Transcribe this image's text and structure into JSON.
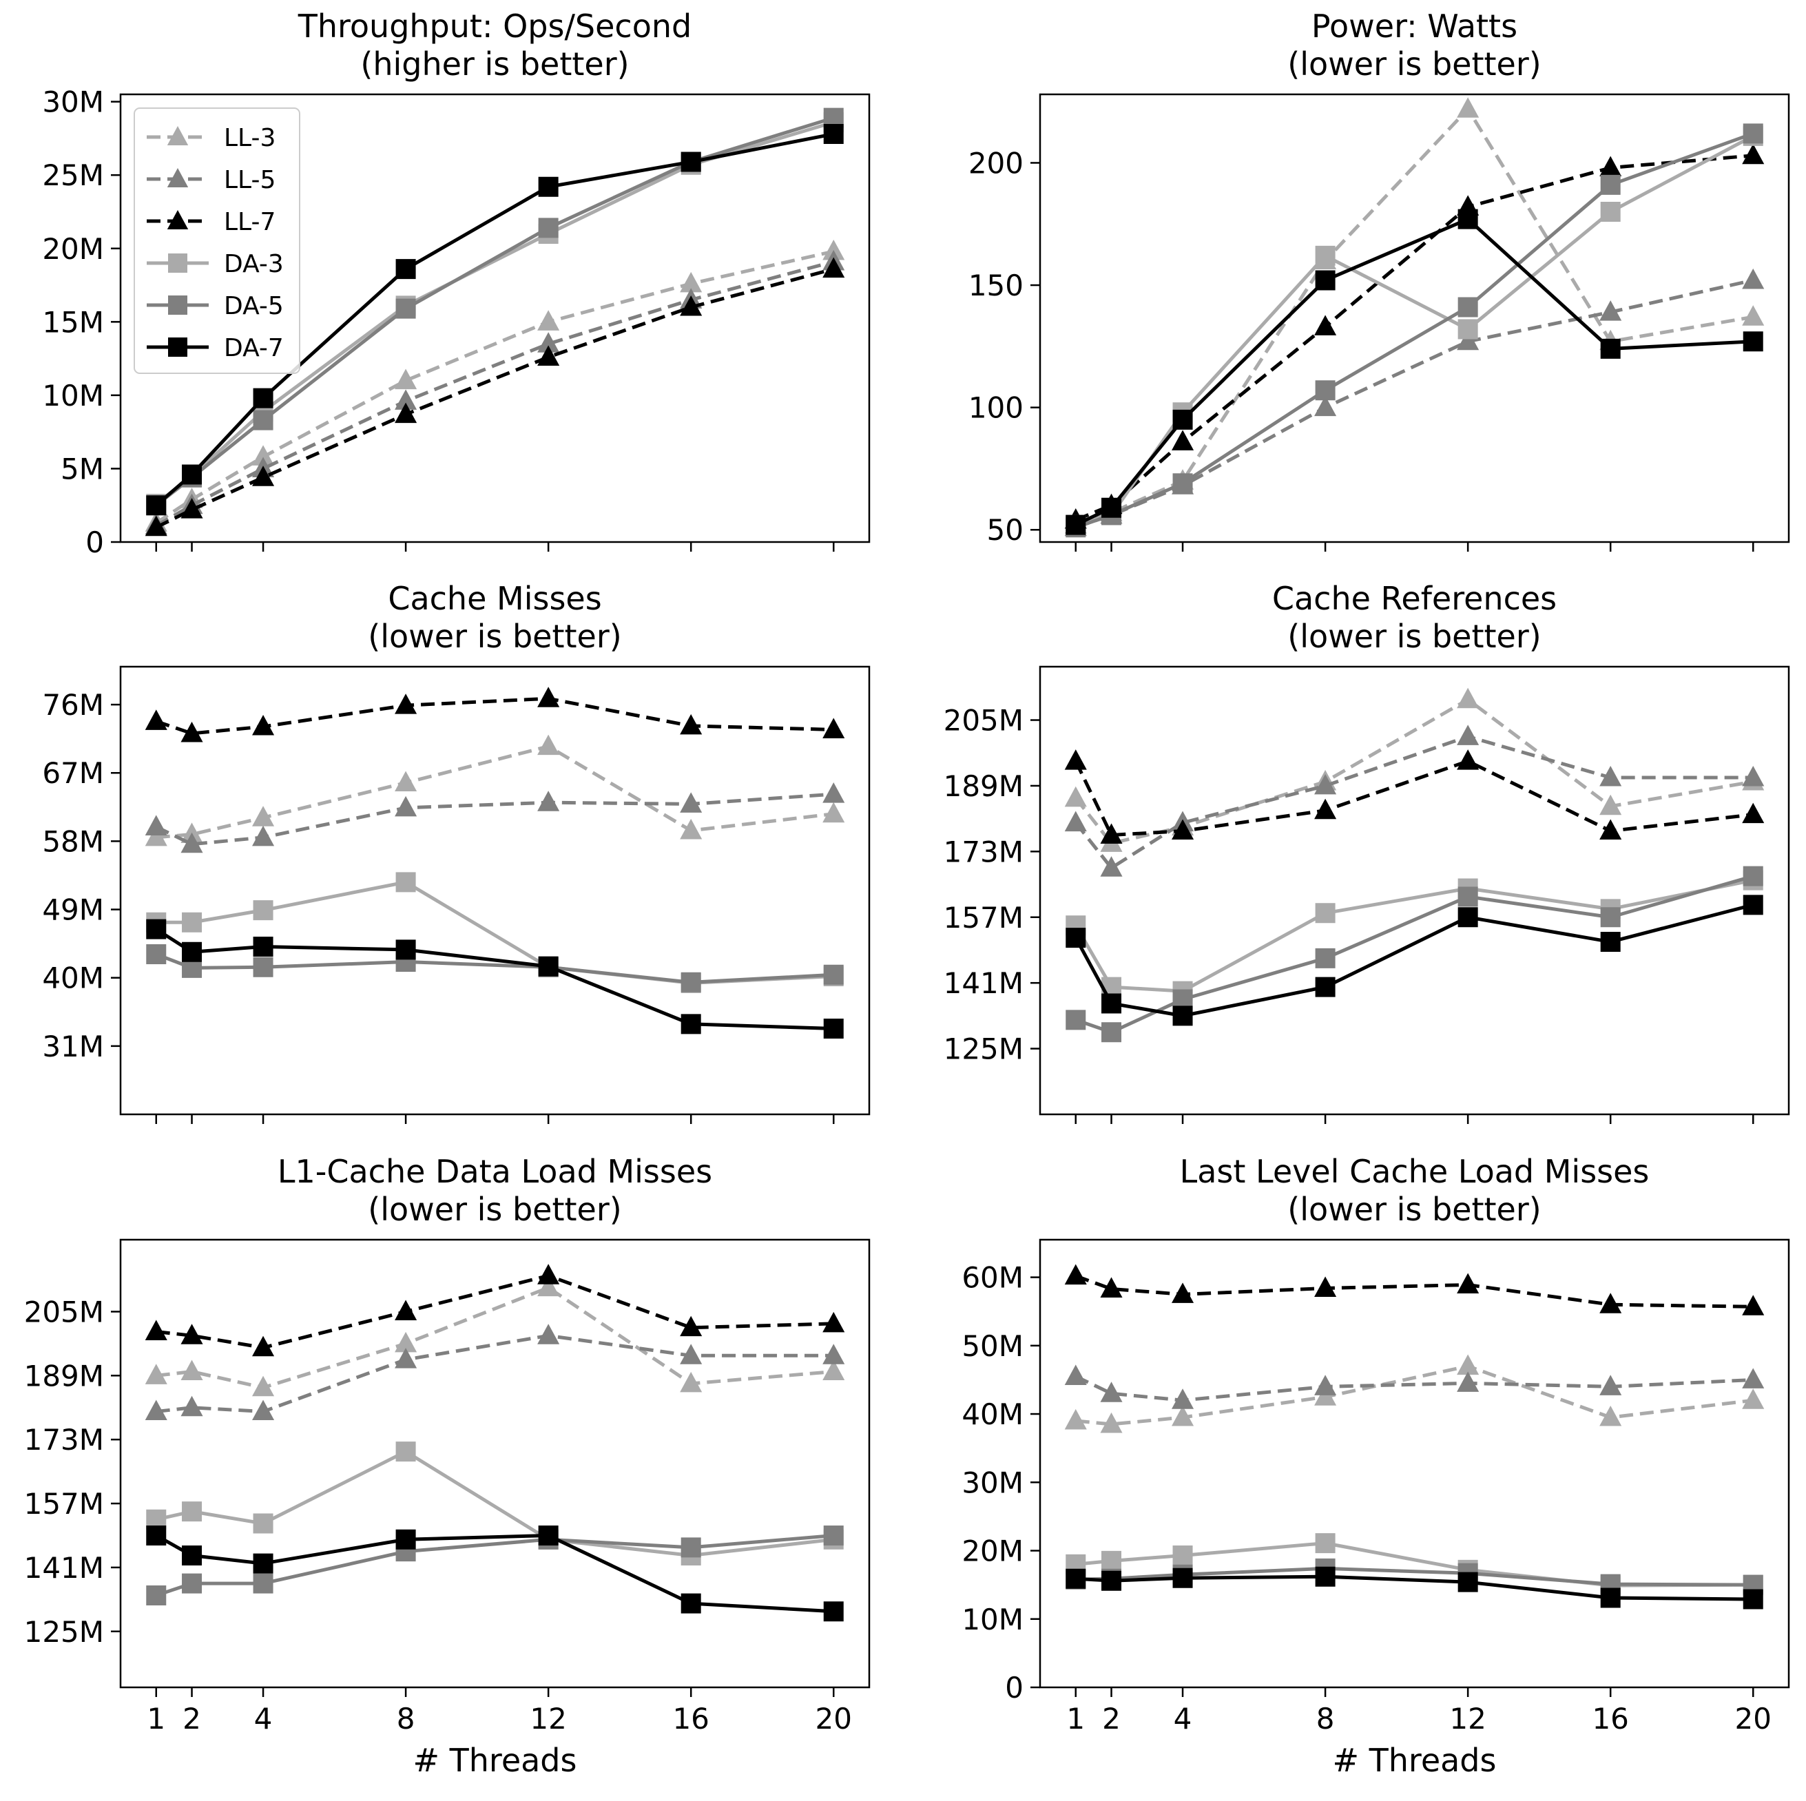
{
  "style": {
    "series": {
      "LL-3": {
        "color": "#aaaaaa",
        "dash": true,
        "marker": "triangle"
      },
      "LL-5": {
        "color": "#7f7f7f",
        "dash": true,
        "marker": "triangle"
      },
      "LL-7": {
        "color": "#000000",
        "dash": true,
        "marker": "triangle"
      },
      "DA-3": {
        "color": "#aaaaaa",
        "dash": false,
        "marker": "square"
      },
      "DA-5": {
        "color": "#7f7f7f",
        "dash": false,
        "marker": "square"
      },
      "DA-7": {
        "color": "#000000",
        "dash": false,
        "marker": "square"
      }
    }
  },
  "legend": {
    "location": "top-left",
    "entries": [
      "LL-3",
      "LL-5",
      "LL-7",
      "DA-3",
      "DA-5",
      "DA-7"
    ]
  },
  "chart_data": [
    {
      "type": "line",
      "title": [
        "Throughput: Ops/Second",
        "(higher is better)"
      ],
      "xlabel": "",
      "ylabel": "",
      "x": [
        1,
        2,
        4,
        8,
        12,
        16,
        20
      ],
      "xlim": [
        0,
        21
      ],
      "ylim": [
        0,
        30.5
      ],
      "yticks": [
        0,
        5,
        10,
        15,
        20,
        25,
        30
      ],
      "ytick_labels": [
        "0",
        "5M",
        "10M",
        "15M",
        "20M",
        "25M",
        "30M"
      ],
      "show_x_tick_labels": false,
      "series": [
        {
          "name": "LL-3",
          "values": [
            1.3,
            2.9,
            5.8,
            11.0,
            15.0,
            17.6,
            19.8
          ]
        },
        {
          "name": "LL-5",
          "values": [
            1.1,
            2.5,
            5.0,
            9.6,
            13.5,
            16.5,
            19.1
          ]
        },
        {
          "name": "LL-7",
          "values": [
            1.0,
            2.2,
            4.4,
            8.7,
            12.6,
            16.0,
            18.6
          ]
        },
        {
          "name": "DA-3",
          "values": [
            2.6,
            4.5,
            8.9,
            16.1,
            21.0,
            25.7,
            28.6
          ]
        },
        {
          "name": "DA-5",
          "values": [
            2.5,
            4.4,
            8.3,
            15.9,
            21.4,
            25.9,
            28.9
          ]
        },
        {
          "name": "DA-7",
          "values": [
            2.5,
            4.6,
            9.8,
            18.6,
            24.2,
            25.9,
            27.8
          ]
        }
      ]
    },
    {
      "type": "line",
      "title": [
        "Power: Watts",
        "(lower is better)"
      ],
      "xlabel": "",
      "ylabel": "",
      "x": [
        1,
        2,
        4,
        8,
        12,
        16,
        20
      ],
      "xlim": [
        0,
        21
      ],
      "ylim": [
        45,
        228
      ],
      "yticks": [
        50,
        100,
        150,
        200
      ],
      "ytick_labels": [
        "50",
        "100",
        "150",
        "200"
      ],
      "show_x_tick_labels": false,
      "series": [
        {
          "name": "LL-3",
          "values": [
            52,
            57,
            70,
            160,
            222,
            127,
            137
          ]
        },
        {
          "name": "LL-5",
          "values": [
            51,
            56,
            68,
            100,
            127,
            139,
            152
          ]
        },
        {
          "name": "LL-7",
          "values": [
            54,
            60,
            86,
            133,
            182,
            198,
            203
          ]
        },
        {
          "name": "DA-3",
          "values": [
            52,
            56,
            98,
            162,
            132,
            180,
            211
          ]
        },
        {
          "name": "DA-5",
          "values": [
            51,
            56,
            69,
            107,
            141,
            191,
            212
          ]
        },
        {
          "name": "DA-7",
          "values": [
            52,
            59,
            95,
            152,
            177,
            124,
            127
          ]
        }
      ]
    },
    {
      "type": "line",
      "title": [
        "Cache Misses",
        "(lower is better)"
      ],
      "xlabel": "",
      "ylabel": "",
      "x": [
        1,
        2,
        4,
        8,
        12,
        16,
        20
      ],
      "xlim": [
        0,
        21
      ],
      "ylim": [
        22,
        81
      ],
      "yticks": [
        31,
        40,
        49,
        58,
        67,
        76
      ],
      "ytick_labels": [
        "31M",
        "40M",
        "49M",
        "58M",
        "67M",
        "76M"
      ],
      "show_x_tick_labels": false,
      "series": [
        {
          "name": "LL-3",
          "values": [
            58.5,
            58.9,
            61.1,
            65.7,
            70.5,
            59.4,
            61.6
          ]
        },
        {
          "name": "LL-5",
          "values": [
            59.9,
            57.6,
            58.5,
            62.4,
            63.1,
            62.9,
            64.2
          ]
        },
        {
          "name": "LL-7",
          "values": [
            73.8,
            72.2,
            73.1,
            75.9,
            76.8,
            73.2,
            72.7
          ]
        },
        {
          "name": "DA-3",
          "values": [
            47.3,
            47.3,
            48.9,
            52.6,
            41.4,
            39.3,
            40.2
          ]
        },
        {
          "name": "DA-5",
          "values": [
            43.1,
            41.3,
            41.4,
            42.1,
            41.4,
            39.4,
            40.4
          ]
        },
        {
          "name": "DA-7",
          "values": [
            46.4,
            43.4,
            44.1,
            43.7,
            41.5,
            33.9,
            33.3
          ]
        }
      ]
    },
    {
      "type": "line",
      "title": [
        "Cache References",
        "(lower is better)"
      ],
      "xlabel": "",
      "ylabel": "",
      "x": [
        1,
        2,
        4,
        8,
        12,
        16,
        20
      ],
      "xlim": [
        0,
        21
      ],
      "ylim": [
        109,
        218
      ],
      "yticks": [
        125,
        141,
        157,
        173,
        189,
        205
      ],
      "ytick_labels": [
        "125M",
        "141M",
        "157M",
        "173M",
        "189M",
        "205M"
      ],
      "show_x_tick_labels": false,
      "series": [
        {
          "name": "LL-3",
          "values": [
            186,
            175,
            179,
            190,
            210,
            184,
            190
          ]
        },
        {
          "name": "LL-5",
          "values": [
            180,
            169,
            180,
            189,
            201,
            191,
            191
          ]
        },
        {
          "name": "LL-7",
          "values": [
            195,
            177,
            178,
            183,
            195,
            178,
            182
          ]
        },
        {
          "name": "DA-3",
          "values": [
            155,
            140,
            139,
            158,
            164,
            159,
            166
          ]
        },
        {
          "name": "DA-5",
          "values": [
            132,
            129,
            137,
            147,
            162,
            157,
            167
          ]
        },
        {
          "name": "DA-7",
          "values": [
            152,
            136,
            133,
            140,
            157,
            151,
            160
          ]
        }
      ]
    },
    {
      "type": "line",
      "title": [
        "L1-Cache Data Load Misses",
        "(lower is better)"
      ],
      "xlabel": "# Threads",
      "ylabel": "",
      "x": [
        1,
        2,
        4,
        8,
        12,
        16,
        20
      ],
      "xlim": [
        0,
        21
      ],
      "ylim": [
        111,
        223
      ],
      "yticks": [
        125,
        141,
        157,
        173,
        189,
        205
      ],
      "ytick_labels": [
        "125M",
        "141M",
        "157M",
        "173M",
        "189M",
        "205M"
      ],
      "show_x_tick_labels": true,
      "xtick_labels": [
        "1",
        "2",
        "4",
        "8",
        "12",
        "16",
        "20"
      ],
      "series": [
        {
          "name": "LL-3",
          "values": [
            189,
            190,
            186,
            197,
            211,
            187,
            190
          ]
        },
        {
          "name": "LL-5",
          "values": [
            180,
            181,
            180,
            193,
            199,
            194,
            194
          ]
        },
        {
          "name": "LL-7",
          "values": [
            200,
            199,
            196,
            205,
            214,
            201,
            202
          ]
        },
        {
          "name": "DA-3",
          "values": [
            153,
            155,
            152,
            170,
            148,
            144,
            148
          ]
        },
        {
          "name": "DA-5",
          "values": [
            134,
            137,
            137,
            145,
            148,
            146,
            149
          ]
        },
        {
          "name": "DA-7",
          "values": [
            149,
            144,
            142,
            148,
            149,
            132,
            130
          ]
        }
      ]
    },
    {
      "type": "line",
      "title": [
        "Last Level Cache Load Misses",
        "(lower is better)"
      ],
      "xlabel": "# Threads",
      "ylabel": "",
      "x": [
        1,
        2,
        4,
        8,
        12,
        16,
        20
      ],
      "xlim": [
        0,
        21
      ],
      "ylim": [
        0,
        65.5
      ],
      "yticks": [
        0,
        10,
        20,
        30,
        40,
        50,
        60
      ],
      "ytick_labels": [
        "0",
        "10M",
        "20M",
        "30M",
        "40M",
        "50M",
        "60M"
      ],
      "show_x_tick_labels": true,
      "xtick_labels": [
        "1",
        "2",
        "4",
        "8",
        "12",
        "16",
        "20"
      ],
      "series": [
        {
          "name": "LL-3",
          "values": [
            39.0,
            38.5,
            39.5,
            42.5,
            47.0,
            39.5,
            42.0
          ]
        },
        {
          "name": "LL-5",
          "values": [
            45.5,
            43.0,
            42.0,
            44.0,
            44.5,
            44.0,
            45.0
          ]
        },
        {
          "name": "LL-7",
          "values": [
            60.2,
            58.3,
            57.5,
            58.4,
            58.9,
            56.0,
            55.7
          ]
        },
        {
          "name": "DA-3",
          "values": [
            18.0,
            18.5,
            19.3,
            21.1,
            17.2,
            14.9,
            15.0
          ]
        },
        {
          "name": "DA-5",
          "values": [
            15.8,
            15.9,
            16.5,
            17.4,
            16.7,
            15.1,
            15.0
          ]
        },
        {
          "name": "DA-7",
          "values": [
            15.9,
            15.6,
            16.0,
            16.2,
            15.4,
            13.1,
            12.9
          ]
        }
      ]
    }
  ]
}
